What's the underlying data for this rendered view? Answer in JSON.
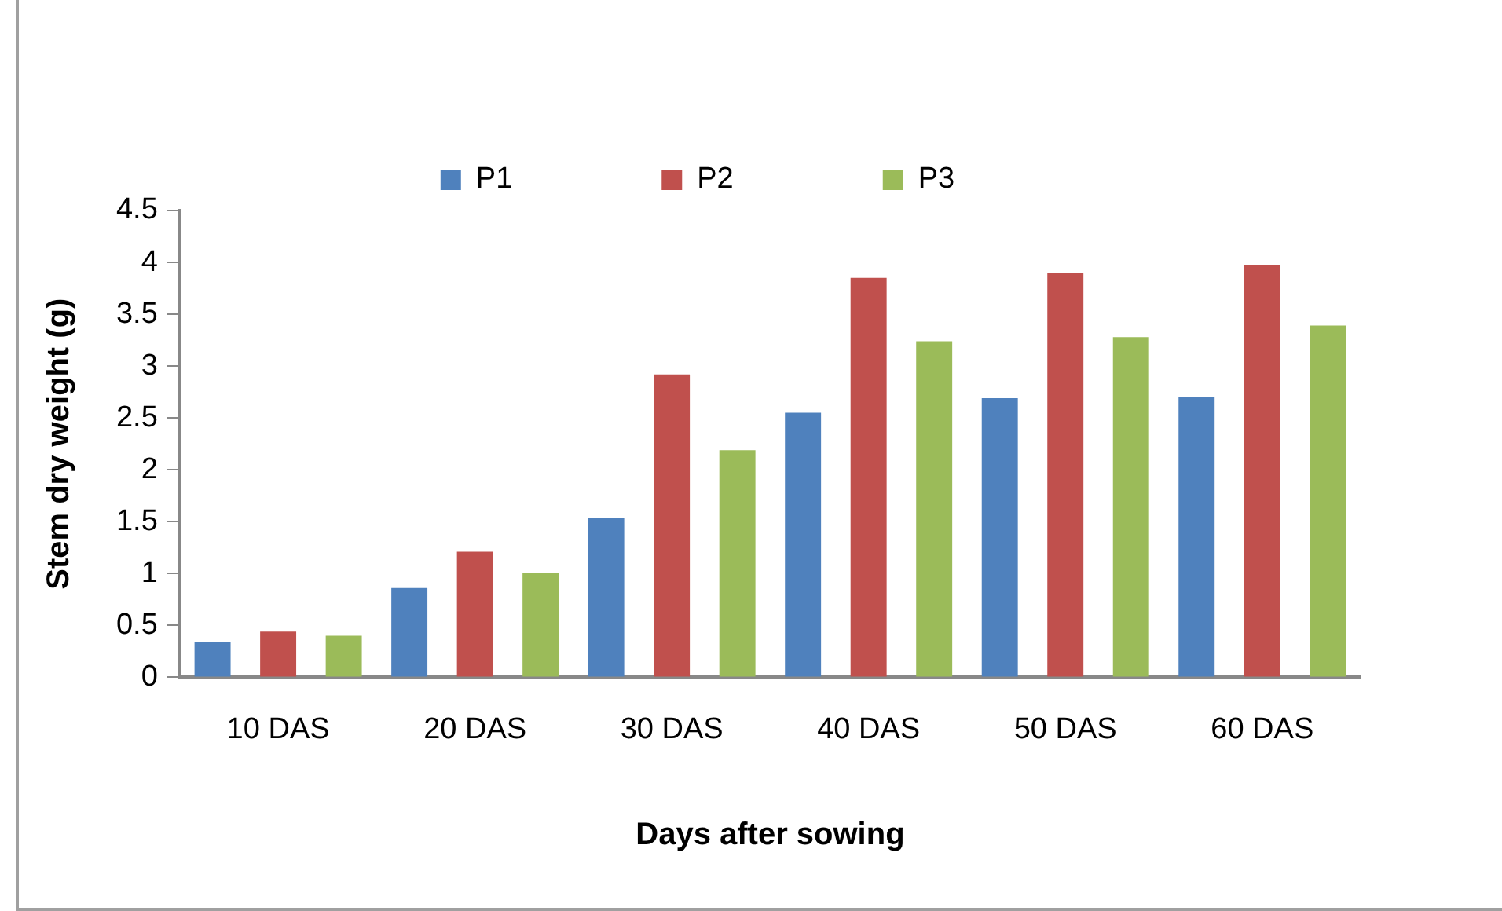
{
  "chart_data": {
    "type": "bar",
    "xlabel": "Days after sowing",
    "ylabel": "Stem dry weight (g)",
    "categories": [
      "10 DAS",
      "20 DAS",
      "30 DAS",
      "40 DAS",
      "50 DAS",
      "60 DAS"
    ],
    "series": [
      {
        "name": "P1",
        "color": "#4f81bd",
        "values": [
          0.34,
          0.86,
          1.54,
          2.55,
          2.69,
          2.7
        ]
      },
      {
        "name": "P2",
        "color": "#c0504d",
        "values": [
          0.44,
          1.21,
          2.92,
          3.85,
          3.9,
          3.97
        ]
      },
      {
        "name": "P3",
        "color": "#9bbb59",
        "values": [
          0.4,
          1.01,
          2.19,
          3.24,
          3.28,
          3.39
        ]
      }
    ],
    "ylim": [
      0,
      4.5
    ],
    "yticks": [
      0,
      0.5,
      1,
      1.5,
      2,
      2.5,
      3,
      3.5,
      4,
      4.5
    ],
    "grid": false,
    "legend": "top"
  }
}
